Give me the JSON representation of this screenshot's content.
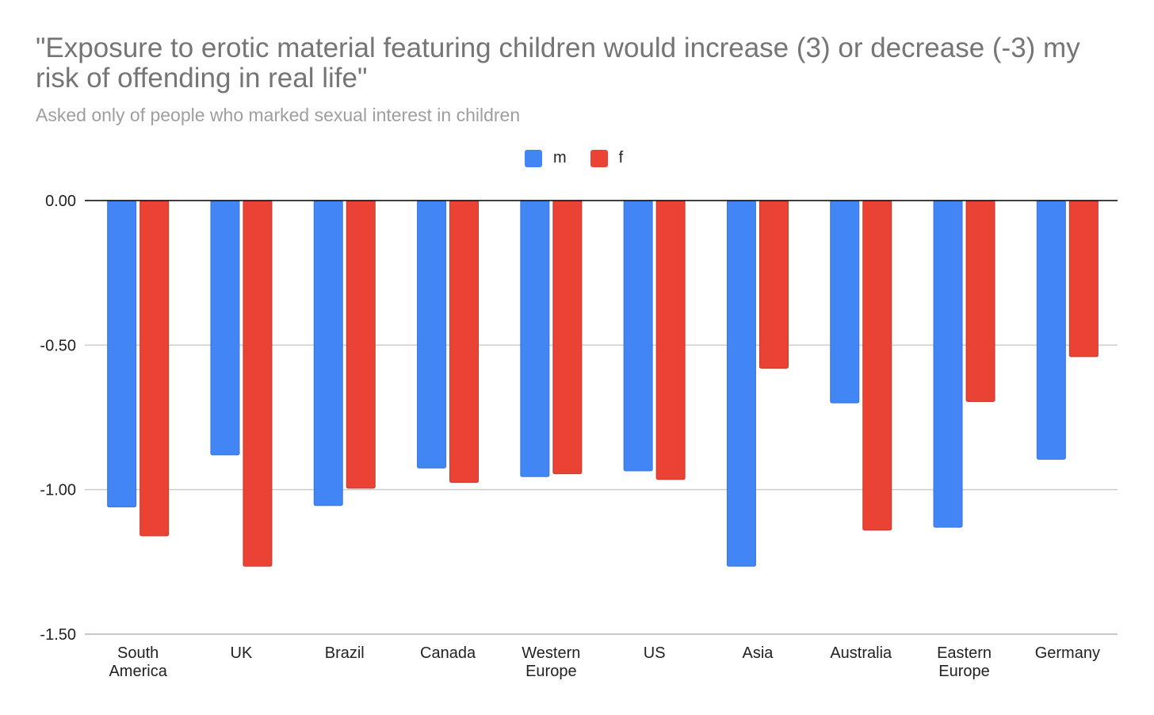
{
  "title": "\"Exposure to erotic material featuring children would increase (3) or decrease (-3) my risk of offending in real life\"",
  "subtitle": "Asked only of people who marked sexual interest in children",
  "colors": {
    "m": "#4285f4",
    "f": "#ea4335",
    "grid": "#cccccc",
    "baseline": "#000000"
  },
  "legend": [
    {
      "label": "m",
      "color": "#4285f4"
    },
    {
      "label": "f",
      "color": "#ea4335"
    }
  ],
  "chart_data": {
    "type": "bar",
    "categories": [
      [
        "South",
        "America"
      ],
      [
        "UK"
      ],
      [
        "Brazil"
      ],
      [
        "Canada"
      ],
      [
        "Western",
        "Europe"
      ],
      [
        "US"
      ],
      [
        "Asia"
      ],
      [
        "Australia"
      ],
      [
        "Eastern",
        "Europe"
      ],
      [
        "Germany"
      ]
    ],
    "series": [
      {
        "name": "m",
        "values": [
          -1.06,
          -0.88,
          -1.055,
          -0.925,
          -0.955,
          -0.935,
          -1.265,
          -0.7,
          -1.13,
          -0.895
        ]
      },
      {
        "name": "f",
        "values": [
          -1.16,
          -1.265,
          -0.995,
          -0.975,
          -0.945,
          -0.965,
          -0.58,
          -1.14,
          -0.695,
          -0.54
        ]
      }
    ],
    "ylim": [
      -1.5,
      0
    ],
    "yticks": [
      "0.00",
      "-0.50",
      "-1.00",
      "-1.50"
    ],
    "ytick_values": [
      0,
      -0.5,
      -1.0,
      -1.5
    ],
    "grid": true,
    "legend_position": "top-center",
    "xlabel": "",
    "ylabel": ""
  }
}
